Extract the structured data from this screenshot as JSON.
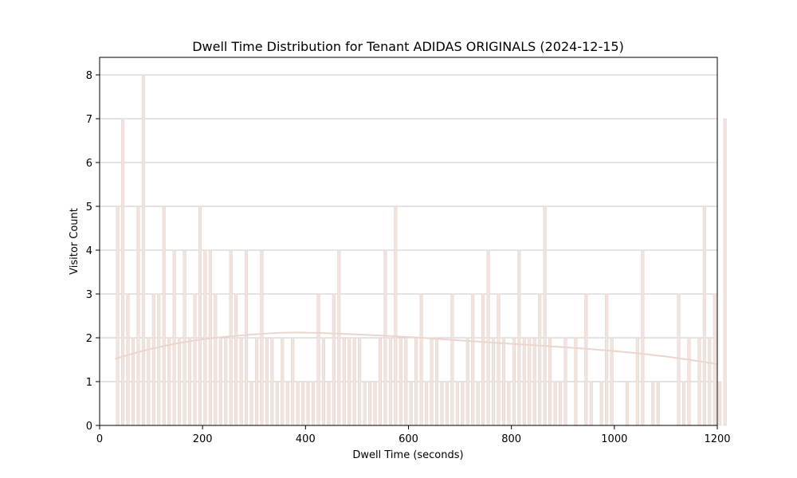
{
  "chart_data": {
    "type": "bar",
    "title": "Dwell Time Distribution for Tenant ADIDAS ORIGINALS (2024-12-15)",
    "xlabel": "Dwell Time (seconds)",
    "ylabel": "Visitor Count",
    "xlim": [
      0,
      1200
    ],
    "ylim": [
      0,
      8.4
    ],
    "xticks": [
      0,
      200,
      400,
      600,
      800,
      1000,
      1200
    ],
    "yticks": [
      0,
      1,
      2,
      3,
      4,
      5,
      6,
      7,
      8
    ],
    "grid": "y",
    "bin_start": 30,
    "bin_width": 10,
    "values": [
      5,
      7,
      3,
      2,
      5,
      8,
      2,
      3,
      3,
      5,
      2,
      4,
      2,
      4,
      2,
      3,
      5,
      4,
      4,
      3,
      2,
      2,
      4,
      3,
      2,
      4,
      1,
      2,
      4,
      2,
      2,
      1,
      2,
      1,
      2,
      1,
      1,
      1,
      1,
      3,
      2,
      1,
      3,
      4,
      2,
      2,
      2,
      2,
      1,
      1,
      1,
      2,
      4,
      2,
      5,
      2,
      2,
      1,
      2,
      3,
      1,
      2,
      2,
      1,
      1,
      3,
      1,
      1,
      2,
      3,
      1,
      3,
      4,
      2,
      3,
      2,
      1,
      2,
      4,
      2,
      2,
      2,
      3,
      5,
      2,
      1,
      1,
      2,
      0,
      2,
      0,
      3,
      1,
      0,
      1,
      3,
      2,
      0,
      0,
      1,
      0,
      2,
      4,
      0,
      1,
      1,
      0,
      0,
      0,
      3,
      1,
      2,
      0,
      2,
      5,
      2,
      3,
      1,
      7
    ],
    "curve": {
      "x": [
        30,
        100,
        200,
        300,
        360,
        400,
        500,
        600,
        700,
        800,
        900,
        1000,
        1100,
        1200
      ],
      "y": [
        1.52,
        1.76,
        1.98,
        2.08,
        2.12,
        2.12,
        2.08,
        2.02,
        1.94,
        1.86,
        1.79,
        1.7,
        1.58,
        1.4
      ]
    },
    "colors": {
      "bar_fill": "#f1e4df",
      "bar_edge": "#e6d3cc",
      "curve": "#ead6cc",
      "grid": "#c8c8c8"
    }
  }
}
